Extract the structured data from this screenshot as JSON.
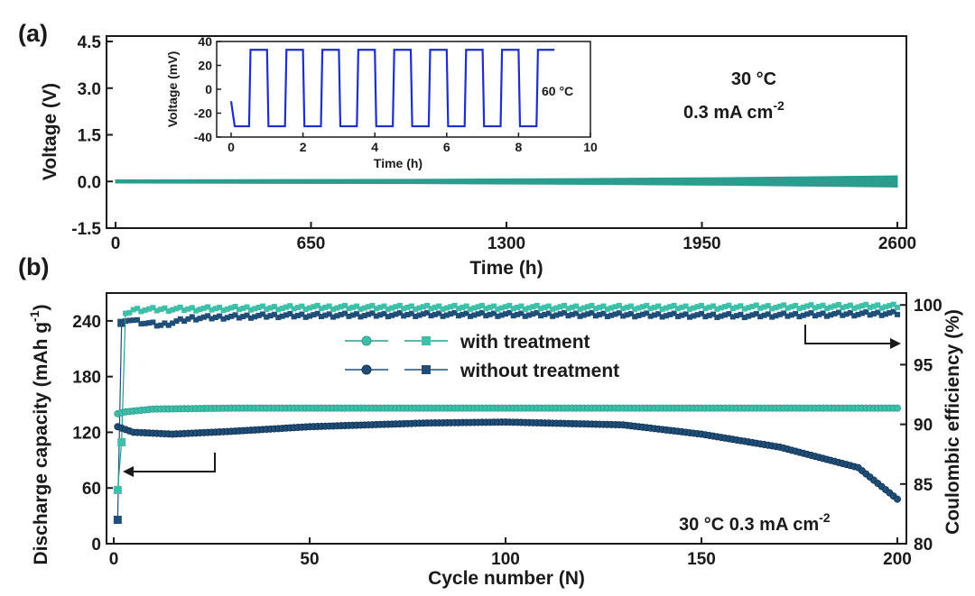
{
  "colors": {
    "teal": "#2a9d8f",
    "teal_light": "#3dbfa8",
    "navy": "#1f4e79",
    "inset_blue": "#1c2fc9",
    "axis": "#1a1a1a"
  },
  "chart_data": [
    {
      "panel": "(a)",
      "type": "line",
      "xlabel": "Time (h)",
      "ylabel": "Voltage (V)",
      "xlim": [
        0,
        2600
      ],
      "ylim": [
        -1.5,
        4.5
      ],
      "x_ticks": [
        "0",
        "650",
        "1300",
        "1950",
        "2600"
      ],
      "y_ticks": [
        "-1.5",
        "0.0",
        "1.5",
        "3.0",
        "4.5"
      ],
      "annotation": {
        "line1": "30  °C",
        "line2_main": "0.3 mA cm",
        "line2_sup": "-2"
      },
      "series": [
        {
          "x": [
            0,
            500,
            1000,
            1500,
            2000,
            2300,
            2600
          ],
          "y_upper": [
            0.05,
            0.06,
            0.07,
            0.09,
            0.12,
            0.15,
            0.18
          ],
          "y_lower": [
            -0.05,
            -0.06,
            -0.07,
            -0.09,
            -0.12,
            -0.15,
            -0.18
          ],
          "color": "#2a9d8f"
        }
      ],
      "inset": {
        "type": "line",
        "xlabel": "Time (h)",
        "ylabel": "Voltage (mV)",
        "xlim": [
          0,
          10
        ],
        "ylim": [
          -40,
          40
        ],
        "x_ticks": [
          "0",
          "2",
          "4",
          "6",
          "8",
          "10"
        ],
        "y_ticks": [
          "-40",
          "-20",
          "0",
          "20",
          "40"
        ],
        "annotation": "60 °C",
        "square_wave": {
          "start": 0,
          "end": 9,
          "period": 1.0,
          "high": 33,
          "low": -31,
          "first_value": -10
        }
      }
    },
    {
      "panel": "(b)",
      "type": "scatter",
      "xlabel": "Cycle number (N)",
      "ylabel_main": "Discharge capacity (mAh g",
      "ylabel_sup": "-1",
      "ylabel_end": ")",
      "y2label": "Coulombic efficiency (%)",
      "xlim": [
        0,
        200
      ],
      "ylim": [
        0,
        270
      ],
      "y2lim": [
        80,
        101
      ],
      "x_ticks": [
        "0",
        "50",
        "100",
        "150",
        "200"
      ],
      "y_ticks": [
        "0",
        "60",
        "120",
        "180",
        "240"
      ],
      "y2_ticks": [
        "80",
        "85",
        "90",
        "95",
        "100"
      ],
      "annotation": {
        "main": "30 °C  0.3 mA cm",
        "sup": "-2"
      },
      "legend": {
        "position": "top-center",
        "entries": [
          "with treatment",
          "without treatment"
        ]
      },
      "series": [
        {
          "name": "with treatment",
          "metric": "capacity",
          "color": "#2a9d8f",
          "x": [
            1,
            3,
            10,
            30,
            60,
            100,
            150,
            200
          ],
          "y": [
            140,
            142,
            145,
            146,
            146,
            146,
            146,
            146
          ]
        },
        {
          "name": "without treatment",
          "metric": "capacity",
          "color": "#1f4e79",
          "x": [
            1,
            5,
            15,
            30,
            50,
            80,
            100,
            130,
            150,
            170,
            190,
            200
          ],
          "y": [
            126,
            120,
            118,
            121,
            126,
            130,
            131,
            128,
            118,
            104,
            82,
            48
          ]
        },
        {
          "name": "with treatment",
          "metric": "efficiency",
          "color": "#2a9d8f",
          "x": [
            1,
            2,
            3,
            5,
            50,
            100,
            150,
            200
          ],
          "y": [
            84.5,
            88.5,
            99.3,
            99.6,
            99.8,
            99.8,
            99.8,
            99.9
          ]
        },
        {
          "name": "without treatment",
          "metric": "efficiency",
          "color": "#1f4e79",
          "x": [
            1,
            2,
            4,
            8,
            12,
            20,
            40,
            80,
            120,
            160,
            200
          ],
          "y": [
            82,
            98.5,
            98.8,
            98.5,
            98.3,
            98.9,
            99.1,
            99.2,
            99.2,
            99.1,
            99.3
          ]
        }
      ]
    }
  ]
}
